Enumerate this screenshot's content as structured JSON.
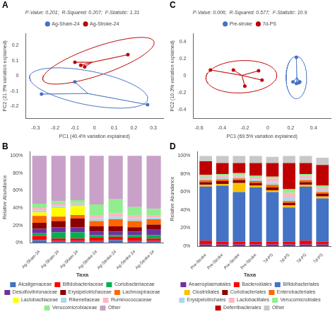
{
  "chart_data": [
    {
      "type": "scatter",
      "panel_label": "A",
      "title": "P-Value: 0.201;  R-Squared: 0.207;  F-Statistic: 1.31",
      "xlabel": "PC1 (40.4% variation explained)",
      "ylabel": "PC2 (21.9% variation explained)",
      "xlim": [
        -0.35,
        0.35
      ],
      "xticks": [
        -0.3,
        -0.2,
        -0.1,
        0,
        0.1,
        0.2,
        0.3
      ],
      "ylim": [
        -0.28,
        0.28
      ],
      "yticks": [
        -0.2,
        -0.1,
        0,
        0.1,
        0.2
      ],
      "grid": false,
      "legend": "top",
      "marker": "circle",
      "series": [
        {
          "name": "Ag-Sham-24",
          "color": "#4472C4",
          "x": [
            -0.27,
            -0.1,
            0.27
          ],
          "y": [
            -0.12,
            -0.04,
            -0.19
          ],
          "centroid": [
            -0.03333333333333333,
            -0.11666666666666667
          ],
          "ellipse": {
            "x": -0.03,
            "y": -0.08,
            "w": 0.62,
            "h": 0.22,
            "angle": -15
          }
        },
        {
          "name": "Ag-Stroke-24",
          "color": "#C00000",
          "x": [
            -0.1,
            -0.07,
            -0.05,
            0.17
          ],
          "y": [
            0.09,
            0.07,
            0.06,
            0.14
          ],
          "centroid": [
            -0.0125,
            0.09
          ],
          "ellipse": {
            "x": 0.02,
            "y": 0.1,
            "w": 0.62,
            "h": 0.18,
            "angle": 25
          }
        }
      ]
    },
    {
      "type": "scatter",
      "panel_label": "C",
      "title": "P-Value: 0.006;  R-Squared: 0.577;  F-Statistic: 10.9",
      "xlabel": "PC1 (69.5% variation explained)",
      "ylabel": "PC2 (10.3% variation explained)",
      "xlim": [
        -0.65,
        0.55
      ],
      "xticks": [
        -0.6,
        -0.4,
        -0.2,
        0,
        0.2,
        0.4
      ],
      "ylim": [
        -0.5,
        0.5
      ],
      "yticks": [
        -0.4,
        -0.2,
        0,
        0.2,
        0.4
      ],
      "grid": false,
      "legend": "top",
      "marker": "circle",
      "series": [
        {
          "name": "Pre-stroke",
          "color": "#4472C4",
          "x": [
            0.25,
            0.22,
            0.25,
            0.27,
            0.28
          ],
          "y": [
            0.22,
            -0.07,
            -0.09,
            -0.08,
            -0.07
          ],
          "centroid": [
            0.254,
            -0.018
          ],
          "ellipse": {
            "x": 0.25,
            "y": -0.02,
            "w": 0.18,
            "h": 0.5,
            "angle": 0
          }
        },
        {
          "name": "7d-PS",
          "color": "#C00000",
          "x": [
            -0.5,
            -0.3,
            -0.2,
            -0.05,
            -0.08
          ],
          "y": [
            0.07,
            0.07,
            -0.12,
            -0.05,
            0.06
          ],
          "centroid": [
            -0.226,
            0.006
          ],
          "ellipse": {
            "x": -0.23,
            "y": -0.01,
            "w": 0.62,
            "h": 0.38,
            "angle": 5
          }
        }
      ]
    },
    {
      "type": "bar",
      "stacked": true,
      "panel_label": "B",
      "ylabel": "Relative Abundance",
      "categories": [
        "Ag-Sham-24",
        "Ag-Sham-24",
        "Ag-Sham-24",
        "Ag-Stroke-24",
        "Ag-Stroke-24",
        "Ag-Stroke-24",
        "Ag-Stroke-24"
      ],
      "ylim": [
        0,
        1.05
      ],
      "yticks": [
        {
          "value": 0,
          "label": "0%"
        },
        {
          "value": 0.2,
          "label": "20%"
        },
        {
          "value": 0.4,
          "label": "40%"
        },
        {
          "value": 0.6,
          "label": "60%"
        },
        {
          "value": 0.8,
          "label": "80%"
        },
        {
          "value": 1.0,
          "label": "100%"
        }
      ],
      "grid": false,
      "legend": "bottom",
      "legend_title": "Taxa",
      "series": [
        {
          "name": "Alcaligenaceae",
          "color": "#4472C4",
          "values": [
            0.03,
            0.02,
            0.02,
            0.02,
            0.03,
            0.02,
            0.02
          ]
        },
        {
          "name": "Bifidobacteriaceae",
          "color": "#FF0000",
          "values": [
            0.05,
            0.03,
            0.03,
            0.04,
            0.04,
            0.04,
            0.03
          ]
        },
        {
          "name": "Coriobacteriaceae",
          "color": "#00B050",
          "values": [
            0.03,
            0.07,
            0.07,
            0.03,
            0.02,
            0.03,
            0.04
          ]
        },
        {
          "name": "Desulfovibrionaceae",
          "color": "#7030A0",
          "values": [
            0.05,
            0.06,
            0.06,
            0.04,
            0.04,
            0.04,
            0.06
          ]
        },
        {
          "name": "Erysipelotrichaceae",
          "color": "#8B0000",
          "values": [
            0.07,
            0.07,
            0.1,
            0.06,
            0.06,
            0.05,
            0.06
          ]
        },
        {
          "name": "Lachnospiraceae",
          "color": "#FF6600",
          "values": [
            0.08,
            0.05,
            0.04,
            0.06,
            0.08,
            0.07,
            0.06
          ]
        },
        {
          "name": "Lactobacillaceae",
          "color": "#FFFF00",
          "values": [
            0.04,
            0.1,
            0.1,
            0.0,
            0.0,
            0.0,
            0.0
          ]
        },
        {
          "name": "Rikenellaceae",
          "color": "#ADD8E6",
          "values": [
            0.02,
            0.02,
            0.02,
            0.03,
            0.03,
            0.03,
            0.02
          ]
        },
        {
          "name": "Ruminococcaceae",
          "color": "#FFB6C1",
          "values": [
            0.03,
            0.03,
            0.02,
            0.04,
            0.04,
            0.04,
            0.03
          ]
        },
        {
          "name": "Verucomicrobiaceae",
          "color": "#90EE90",
          "values": [
            0.05,
            0.03,
            0.03,
            0.12,
            0.16,
            0.09,
            0.07
          ]
        },
        {
          "name": "Other",
          "color": "#C8A0C8",
          "values": [
            0.55,
            0.52,
            0.51,
            0.56,
            0.5,
            0.59,
            0.61
          ]
        }
      ]
    },
    {
      "type": "bar",
      "stacked": true,
      "panel_label": "D",
      "ylabel": "Relative Abundance",
      "categories": [
        "Pre-Stroke",
        "Pre-Stroke",
        "Pre-Stroke",
        "Pre-Stroke",
        "7d-PS",
        "7d-PS",
        "7d-PS",
        "7d-PS"
      ],
      "ylim": [
        0,
        1.05
      ],
      "yticks": [
        {
          "value": 0,
          "label": "0%"
        },
        {
          "value": 0.2,
          "label": "20%"
        },
        {
          "value": 0.4,
          "label": "40%"
        },
        {
          "value": 0.6,
          "label": "60%"
        },
        {
          "value": 0.8,
          "label": "80%"
        },
        {
          "value": 1.0,
          "label": "100%"
        }
      ],
      "grid": false,
      "legend": "bottom",
      "legend_title": "Taxa",
      "series": [
        {
          "name": "Anaeroplasmatales",
          "color": "#7030A0",
          "values": [
            0.02,
            0.02,
            0.02,
            0.02,
            0.02,
            0.02,
            0.02,
            0.02
          ]
        },
        {
          "name": "Bacteroidales",
          "color": "#FF0000",
          "values": [
            0.04,
            0.03,
            0.03,
            0.03,
            0.03,
            0.03,
            0.04,
            0.03
          ]
        },
        {
          "name": "Bifidobacteriales",
          "color": "#4472C4",
          "values": [
            0.6,
            0.62,
            0.55,
            0.6,
            0.55,
            0.38,
            0.6,
            0.48
          ]
        },
        {
          "name": "Clostridiales",
          "color": "#FFC000",
          "values": [
            0.02,
            0.02,
            0.1,
            0.02,
            0.02,
            0.02,
            0.02,
            0.02
          ]
        },
        {
          "name": "Coriobacteriales",
          "color": "#8B0000",
          "values": [
            0.03,
            0.03,
            0.03,
            0.03,
            0.03,
            0.03,
            0.03,
            0.03
          ]
        },
        {
          "name": "Enterobacteriales",
          "color": "#FF6600",
          "values": [
            0.02,
            0.02,
            0.02,
            0.02,
            0.03,
            0.02,
            0.02,
            0.02
          ]
        },
        {
          "name": "Erysipelotrichales",
          "color": "#ADD8E6",
          "values": [
            0.02,
            0.02,
            0.02,
            0.02,
            0.03,
            0.04,
            0.02,
            0.02
          ]
        },
        {
          "name": "Lactobacillales",
          "color": "#FFB6C1",
          "values": [
            0.02,
            0.02,
            0.02,
            0.02,
            0.04,
            0.05,
            0.03,
            0.03
          ]
        },
        {
          "name": "Verucomicrobiales",
          "color": "#90EE90",
          "values": [
            0.02,
            0.02,
            0.02,
            0.02,
            0.02,
            0.04,
            0.02,
            0.02
          ]
        },
        {
          "name": "Deferribacterales",
          "color": "#C00000",
          "values": [
            0.15,
            0.12,
            0.11,
            0.14,
            0.15,
            0.29,
            0.12,
            0.23
          ]
        },
        {
          "name": "Other",
          "color": "#C8C8C8",
          "values": [
            0.06,
            0.08,
            0.08,
            0.08,
            0.07,
            0.08,
            0.08,
            0.08
          ]
        }
      ]
    }
  ]
}
